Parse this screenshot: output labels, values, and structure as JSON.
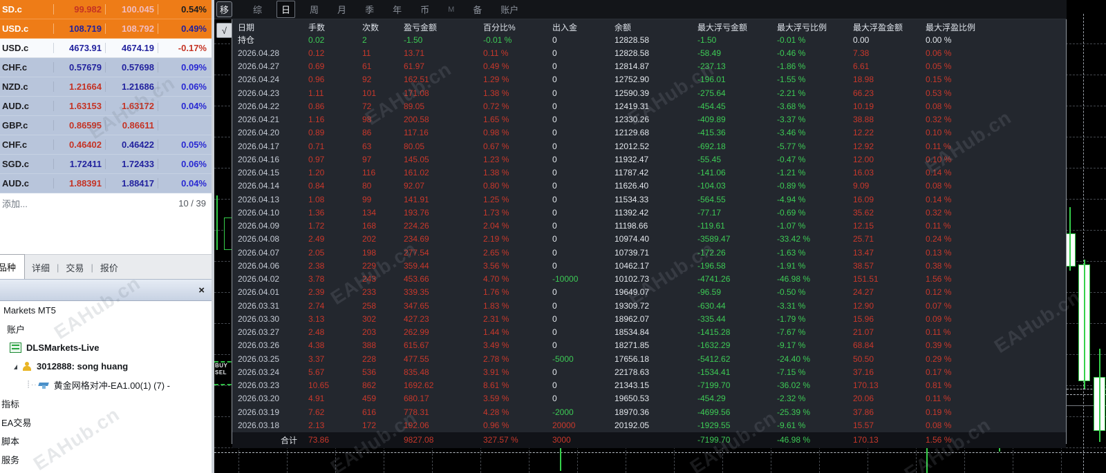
{
  "watermark": "EAHub.cn",
  "market_watch": {
    "rows": [
      {
        "symbol": "SD.c",
        "bid": "99.982",
        "ask": "100.045",
        "pct": "0.54%",
        "bg": "orange",
        "sc": "mw",
        "bc": "mr",
        "ac": "mp",
        "pc": "mk"
      },
      {
        "symbol": "USD.c",
        "bid": "108.719",
        "ask": "108.792",
        "pct": "0.49%",
        "bg": "orange",
        "sc": "mw",
        "bc": "mn",
        "ac": "mp",
        "pc": "mn"
      },
      {
        "symbol": "USD.c",
        "bid": "4673.91",
        "ask": "4674.19",
        "pct": "-0.17%",
        "bg": "white",
        "sc": "mk",
        "bc": "mn",
        "ac": "mn",
        "pc": "mr"
      },
      {
        "symbol": "CHF.c",
        "bid": "0.57679",
        "ask": "0.57698",
        "pct": "0.09%",
        "bg": "steel",
        "sc": "mk",
        "bc": "mn",
        "ac": "mn",
        "pc": "mb"
      },
      {
        "symbol": "NZD.c",
        "bid": "1.21664",
        "ask": "1.21686",
        "pct": "0.06%",
        "bg": "steel",
        "sc": "mk",
        "bc": "mr",
        "ac": "mn",
        "pc": "mb"
      },
      {
        "symbol": "AUD.c",
        "bid": "1.63153",
        "ask": "1.63172",
        "pct": "0.04%",
        "bg": "steel",
        "sc": "mk",
        "bc": "mr",
        "ac": "mr",
        "pc": "mb"
      },
      {
        "symbol": "GBP.c",
        "bid": "0.86595",
        "ask": "0.86611",
        "pct": "",
        "bg": "steel",
        "sc": "mk",
        "bc": "mr",
        "ac": "mr",
        "pc": "mb"
      },
      {
        "symbol": "CHF.c",
        "bid": "0.46402",
        "ask": "0.46422",
        "pct": "0.05%",
        "bg": "steel",
        "sc": "mk",
        "bc": "mr",
        "ac": "mn",
        "pc": "mb"
      },
      {
        "symbol": "SGD.c",
        "bid": "1.72411",
        "ask": "1.72433",
        "pct": "0.06%",
        "bg": "steel",
        "sc": "mk",
        "bc": "mn",
        "ac": "mn",
        "pc": "mb"
      },
      {
        "symbol": "AUD.c",
        "bid": "1.88391",
        "ask": "1.88417",
        "pct": "0.04%",
        "bg": "steel",
        "sc": "mk",
        "bc": "mr",
        "ac": "mn",
        "pc": "mb"
      }
    ],
    "add_label": "添加...",
    "counter": "10 / 39",
    "tabs": [
      {
        "label": "品种",
        "active": true
      },
      {
        "label": "详细",
        "active": false
      },
      {
        "label": "交易",
        "active": false
      },
      {
        "label": "报价",
        "active": false
      }
    ]
  },
  "navigator": {
    "close_icon": "×",
    "items": [
      {
        "label": "Markets MT5",
        "bold": false,
        "icon": "none",
        "arrow": false,
        "dotted": false,
        "indent": 5
      },
      {
        "label": "账户",
        "bold": false,
        "icon": "none",
        "arrow": false,
        "dotted": false,
        "indent": 10
      },
      {
        "label": "DLSMarkets-Live",
        "bold": true,
        "icon": "server",
        "arrow": false,
        "dotted": false,
        "indent": 14
      },
      {
        "label": "3012888: song huang",
        "bold": true,
        "icon": "user",
        "arrow": true,
        "dotted": false,
        "indent": 20
      },
      {
        "label": "黄金网格对冲-EA1.00(1) (7) - ",
        "bold": false,
        "icon": "ea",
        "arrow": false,
        "dotted": true,
        "indent": 38
      },
      {
        "label": "指标",
        "bold": false,
        "icon": "none",
        "arrow": false,
        "dotted": false,
        "indent": 2
      },
      {
        "label": "EA交易",
        "bold": false,
        "icon": "none",
        "arrow": false,
        "dotted": false,
        "indent": 2
      },
      {
        "label": "脚本",
        "bold": false,
        "icon": "none",
        "arrow": false,
        "dotted": false,
        "indent": 2
      },
      {
        "label": "服务",
        "bold": false,
        "icon": "none",
        "arrow": false,
        "dotted": false,
        "indent": 2
      }
    ]
  },
  "toolbar": {
    "move_button": "移",
    "check_button": "√",
    "tabs": [
      "综",
      "日",
      "周",
      "月",
      "季",
      "年",
      "币",
      "M",
      "备",
      "账户"
    ],
    "active_tab": "日"
  },
  "chart": {
    "buy_label": "BUY",
    "sell_label": "SEL"
  },
  "stats_table": {
    "columns": [
      "日期",
      "手数",
      "次数",
      "盈亏金额",
      "百分比%",
      "出入金",
      "余额",
      "最大浮亏金额",
      "最大浮亏比例",
      "最大浮盈金额",
      "最大浮盈比例"
    ],
    "rows": [
      {
        "cells": [
          "持仓",
          "0.02",
          "2",
          "-1.50",
          "-0.01 %",
          "0",
          "12828.58",
          "-1.50",
          "-0.01 %",
          "0.00",
          "0.00 %"
        ],
        "colors": "wggggwwggww"
      },
      {
        "cells": [
          "2026.04.28",
          "0.12",
          "11",
          "13.71",
          "0.11 %",
          "0",
          "12828.58",
          "-58.49",
          "-0.46 %",
          "7.38",
          "0.06 %"
        ],
        "colors": "drrrrwwggrr"
      },
      {
        "cells": [
          "2026.04.27",
          "0.69",
          "61",
          "61.97",
          "0.49 %",
          "0",
          "12814.87",
          "-237.13",
          "-1.86 %",
          "6.61",
          "0.05 %"
        ],
        "colors": "drrrrwwggrr"
      },
      {
        "cells": [
          "2026.04.24",
          "0.96",
          "92",
          "162.51",
          "1.29 %",
          "0",
          "12752.90",
          "-196.01",
          "-1.55 %",
          "18.98",
          "0.15 %"
        ],
        "colors": "drrrrwwggrr"
      },
      {
        "cells": [
          "2026.04.23",
          "1.11",
          "101",
          "171.08",
          "1.38 %",
          "0",
          "12590.39",
          "-275.64",
          "-2.21 %",
          "66.23",
          "0.53 %"
        ],
        "colors": "drrrrwwggrr"
      },
      {
        "cells": [
          "2026.04.22",
          "0.86",
          "72",
          "89.05",
          "0.72 %",
          "0",
          "12419.31",
          "-454.45",
          "-3.68 %",
          "10.19",
          "0.08 %"
        ],
        "colors": "drrrrwwggrr"
      },
      {
        "cells": [
          "2026.04.21",
          "1.16",
          "98",
          "200.58",
          "1.65 %",
          "0",
          "12330.26",
          "-409.89",
          "-3.37 %",
          "38.88",
          "0.32 %"
        ],
        "colors": "drrrrwwggrr"
      },
      {
        "cells": [
          "2026.04.20",
          "0.89",
          "86",
          "117.16",
          "0.98 %",
          "0",
          "12129.68",
          "-415.36",
          "-3.46 %",
          "12.22",
          "0.10 %"
        ],
        "colors": "drrrrwwggrr"
      },
      {
        "cells": [
          "2026.04.17",
          "0.71",
          "63",
          "80.05",
          "0.67 %",
          "0",
          "12012.52",
          "-692.18",
          "-5.77 %",
          "12.92",
          "0.11 %"
        ],
        "colors": "drrrrwwggrr"
      },
      {
        "cells": [
          "2026.04.16",
          "0.97",
          "97",
          "145.05",
          "1.23 %",
          "0",
          "11932.47",
          "-55.45",
          "-0.47 %",
          "12.00",
          "0.10 %"
        ],
        "colors": "drrrrwwggrr"
      },
      {
        "cells": [
          "2026.04.15",
          "1.20",
          "116",
          "161.02",
          "1.38 %",
          "0",
          "11787.42",
          "-141.06",
          "-1.21 %",
          "16.03",
          "0.14 %"
        ],
        "colors": "drrrrwwggrr"
      },
      {
        "cells": [
          "2026.04.14",
          "0.84",
          "80",
          "92.07",
          "0.80 %",
          "0",
          "11626.40",
          "-104.03",
          "-0.89 %",
          "9.09",
          "0.08 %"
        ],
        "colors": "drrrrwwggrr"
      },
      {
        "cells": [
          "2026.04.13",
          "1.08",
          "99",
          "141.91",
          "1.25 %",
          "0",
          "11534.33",
          "-564.55",
          "-4.94 %",
          "16.09",
          "0.14 %"
        ],
        "colors": "drrrrwwggrr"
      },
      {
        "cells": [
          "2026.04.10",
          "1.36",
          "134",
          "193.76",
          "1.73 %",
          "0",
          "11392.42",
          "-77.17",
          "-0.69 %",
          "35.62",
          "0.32 %"
        ],
        "colors": "drrrrwwggrr"
      },
      {
        "cells": [
          "2026.04.09",
          "1.72",
          "168",
          "224.26",
          "2.04 %",
          "0",
          "11198.66",
          "-119.61",
          "-1.07 %",
          "12.15",
          "0.11 %"
        ],
        "colors": "drrrrwwggrr"
      },
      {
        "cells": [
          "2026.04.08",
          "2.49",
          "202",
          "234.69",
          "2.19 %",
          "0",
          "10974.40",
          "-3589.47",
          "-33.42 %",
          "25.71",
          "0.24 %"
        ],
        "colors": "drrrrwwggrr"
      },
      {
        "cells": [
          "2026.04.07",
          "2.05",
          "198",
          "277.54",
          "2.65 %",
          "0",
          "10739.71",
          "-172.26",
          "-1.63 %",
          "13.47",
          "0.13 %"
        ],
        "colors": "drrrrwwggrr"
      },
      {
        "cells": [
          "2026.04.06",
          "2.38",
          "229",
          "359.44",
          "3.56 %",
          "0",
          "10462.17",
          "-196.58",
          "-1.91 %",
          "38.57",
          "0.38 %"
        ],
        "colors": "drrrrwwggrr"
      },
      {
        "cells": [
          "2026.04.02",
          "3.78",
          "243",
          "453.66",
          "4.70 %",
          "-10000",
          "10102.73",
          "-4741.26",
          "-46.98 %",
          "151.51",
          "1.56 %"
        ],
        "colors": "drrrrgwggrr"
      },
      {
        "cells": [
          "2026.04.01",
          "2.39",
          "233",
          "339.35",
          "1.76 %",
          "0",
          "19649.07",
          "-96.59",
          "-0.50 %",
          "24.27",
          "0.12 %"
        ],
        "colors": "drrrrwwggrr"
      },
      {
        "cells": [
          "2026.03.31",
          "2.74",
          "258",
          "347.65",
          "1.83 %",
          "0",
          "19309.72",
          "-630.44",
          "-3.31 %",
          "12.90",
          "0.07 %"
        ],
        "colors": "drrrrwwggrr"
      },
      {
        "cells": [
          "2026.03.30",
          "3.13",
          "302",
          "427.23",
          "2.31 %",
          "0",
          "18962.07",
          "-335.44",
          "-1.79 %",
          "15.96",
          "0.09 %"
        ],
        "colors": "drrrrwwggrr"
      },
      {
        "cells": [
          "2026.03.27",
          "2.48",
          "203",
          "262.99",
          "1.44 %",
          "0",
          "18534.84",
          "-1415.28",
          "-7.67 %",
          "21.07",
          "0.11 %"
        ],
        "colors": "drrrrwwggrr"
      },
      {
        "cells": [
          "2026.03.26",
          "4.38",
          "388",
          "615.67",
          "3.49 %",
          "0",
          "18271.85",
          "-1632.29",
          "-9.17 %",
          "68.84",
          "0.39 %"
        ],
        "colors": "drrrrwwggrr"
      },
      {
        "cells": [
          "2026.03.25",
          "3.37",
          "228",
          "477.55",
          "2.78 %",
          "-5000",
          "17656.18",
          "-5412.62",
          "-24.40 %",
          "50.50",
          "0.29 %"
        ],
        "colors": "drrrrgwggrr"
      },
      {
        "cells": [
          "2026.03.24",
          "5.67",
          "536",
          "835.48",
          "3.91 %",
          "0",
          "22178.63",
          "-1534.41",
          "-7.15 %",
          "37.16",
          "0.17 %"
        ],
        "colors": "drrrrwwggrr"
      },
      {
        "cells": [
          "2026.03.23",
          "10.65",
          "862",
          "1692.62",
          "8.61 %",
          "0",
          "21343.15",
          "-7199.70",
          "-36.02 %",
          "170.13",
          "0.81 %"
        ],
        "colors": "drrrrwwggrr"
      },
      {
        "cells": [
          "2026.03.20",
          "4.91",
          "459",
          "680.17",
          "3.59 %",
          "0",
          "19650.53",
          "-454.29",
          "-2.32 %",
          "20.06",
          "0.11 %"
        ],
        "colors": "drrrrwwggrr"
      },
      {
        "cells": [
          "2026.03.19",
          "7.62",
          "616",
          "778.31",
          "4.28 %",
          "-2000",
          "18970.36",
          "-4699.56",
          "-25.39 %",
          "37.86",
          "0.19 %"
        ],
        "colors": "drrrrgwggrr"
      },
      {
        "cells": [
          "2026.03.18",
          "2.13",
          "172",
          "192.06",
          "0.96 %",
          "20000",
          "20192.05",
          "-1929.55",
          "-9.61 %",
          "15.57",
          "0.08 %"
        ],
        "colors": "drrrrrwggrr"
      },
      {
        "cells": [
          "合计",
          "73.86",
          "",
          "9827.08",
          "327.57 %",
          "3000",
          "",
          "-7199.70",
          "-46.98 %",
          "170.13",
          "1.56 %"
        ],
        "colors": "wrrrrrwggrr",
        "total": true
      }
    ]
  }
}
